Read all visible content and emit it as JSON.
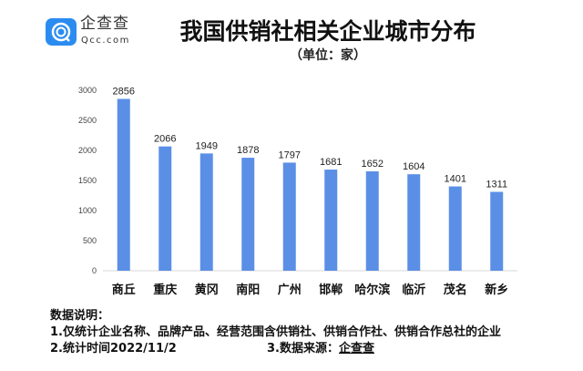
{
  "logo": {
    "name_cn": "企查查",
    "name_en": "Qcc.com"
  },
  "chart_data": {
    "type": "bar",
    "title": "我国供销社相关企业城市分布",
    "subtitle": "（单位：家）",
    "categories": [
      "商丘",
      "重庆",
      "黄冈",
      "南阳",
      "广州",
      "邯郸",
      "哈尔滨",
      "临沂",
      "茂名",
      "新乡"
    ],
    "values": [
      2856,
      2066,
      1949,
      1878,
      1797,
      1681,
      1652,
      1604,
      1401,
      1311
    ],
    "ylim": [
      0,
      3000
    ],
    "yticks": [
      0,
      500,
      1000,
      1500,
      2000,
      2500,
      3000
    ],
    "xlabel": "",
    "ylabel": "",
    "bar_color": "#5b8fe6",
    "grid": false
  },
  "notes": {
    "heading": "数据说明：",
    "line1": "1.仅统计企业名称、品牌产品、经营范围含供销社、供销合作社、供销合作总社的企业",
    "line2": "2.统计时间2022/11/2",
    "line3_prefix": "3.数据来源：",
    "line3_source": "企查查"
  }
}
